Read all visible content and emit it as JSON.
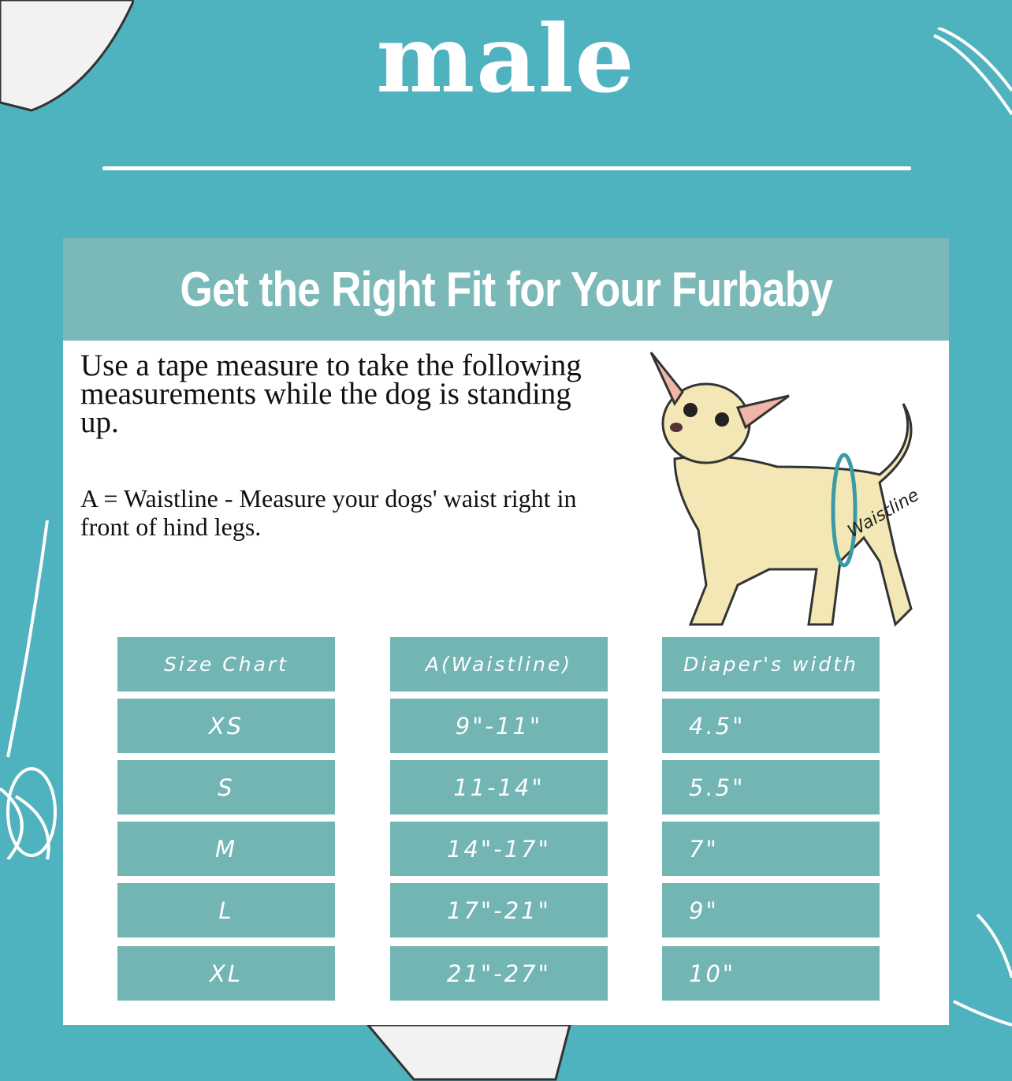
{
  "title": "male",
  "banner": "Get the Right Fit for Your Furbaby",
  "intro": "Use a tape measure to take the following measurements while the dog is standing up.",
  "definition": "A = Waistline - Measure your dogs' waist right in front of hind legs.",
  "illustration_label": "Waistline",
  "colors": {
    "background": "#4fb2bf",
    "banner": "#7bb8b8",
    "cell": "#72b5b3"
  },
  "table": {
    "headers": [
      "Size Chart",
      "A(Waistline)",
      "Diaper's width"
    ],
    "rows": [
      [
        "XS",
        "9\"-11\"",
        "4.5\""
      ],
      [
        "S",
        "11-14\"",
        "5.5\""
      ],
      [
        "M",
        "14\"-17\"",
        "7\""
      ],
      [
        "L",
        "17\"-21\"",
        "9\""
      ],
      [
        "XL",
        "21\"-27\"",
        "10\""
      ]
    ]
  }
}
